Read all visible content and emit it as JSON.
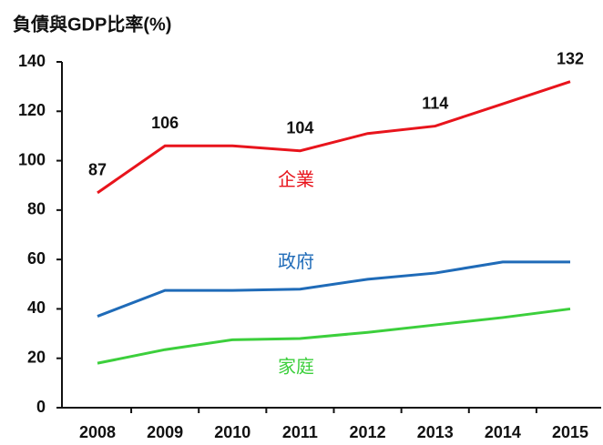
{
  "chart_data": {
    "type": "line",
    "title": "負債與GDP比率(%)",
    "categories": [
      "2008",
      "2009",
      "2010",
      "2011",
      "2012",
      "2013",
      "2014",
      "2015"
    ],
    "series": [
      {
        "name": "企業",
        "color": "#e8141c",
        "values": [
          87,
          106,
          106,
          104,
          111,
          114,
          123,
          132
        ],
        "value_labels": [
          "87",
          "106",
          null,
          "104",
          null,
          "114",
          null,
          "132"
        ]
      },
      {
        "name": "政府",
        "color": "#1f6bb8",
        "values": [
          37,
          47.5,
          47.5,
          48,
          52,
          54.5,
          59,
          59
        ]
      },
      {
        "name": "家庭",
        "color": "#3ccf3c",
        "values": [
          18,
          23.5,
          27.5,
          28,
          30.5,
          33.5,
          36.5,
          40
        ]
      }
    ],
    "ylim": [
      0,
      140
    ],
    "yticks": [
      0,
      20,
      40,
      60,
      80,
      100,
      120,
      140
    ]
  }
}
